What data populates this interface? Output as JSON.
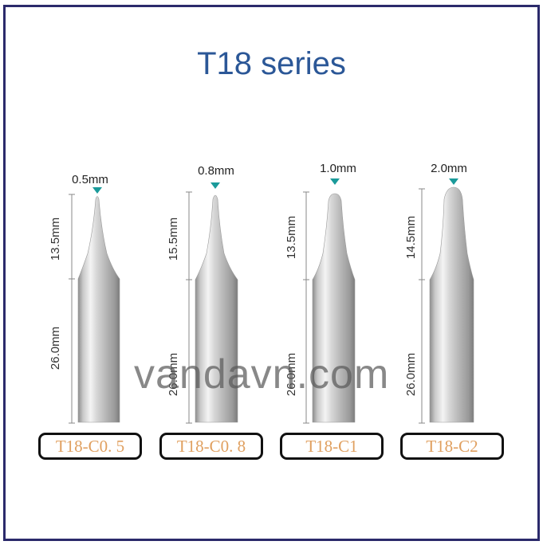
{
  "title": "T18 series",
  "watermark": "vandavn.com",
  "colors": {
    "border": "#2b2a6b",
    "title": "#2b5797",
    "model_text": "#e0a060",
    "marker": "#1a9a9a"
  },
  "tips": [
    {
      "tip_size": "0.5mm",
      "taper_length": "13.5mm",
      "shank_length": "26.0mm",
      "model": "T18-C0. 5"
    },
    {
      "tip_size": "0.8mm",
      "taper_length": "15.5mm",
      "shank_length": "26.0mm",
      "model": "T18-C0. 8"
    },
    {
      "tip_size": "1.0mm",
      "taper_length": "13.5mm",
      "shank_length": "26.0mm",
      "model": "T18-C1"
    },
    {
      "tip_size": "2.0mm",
      "taper_length": "14.5mm",
      "shank_length": "26.0mm",
      "model": "T18-C2"
    }
  ]
}
